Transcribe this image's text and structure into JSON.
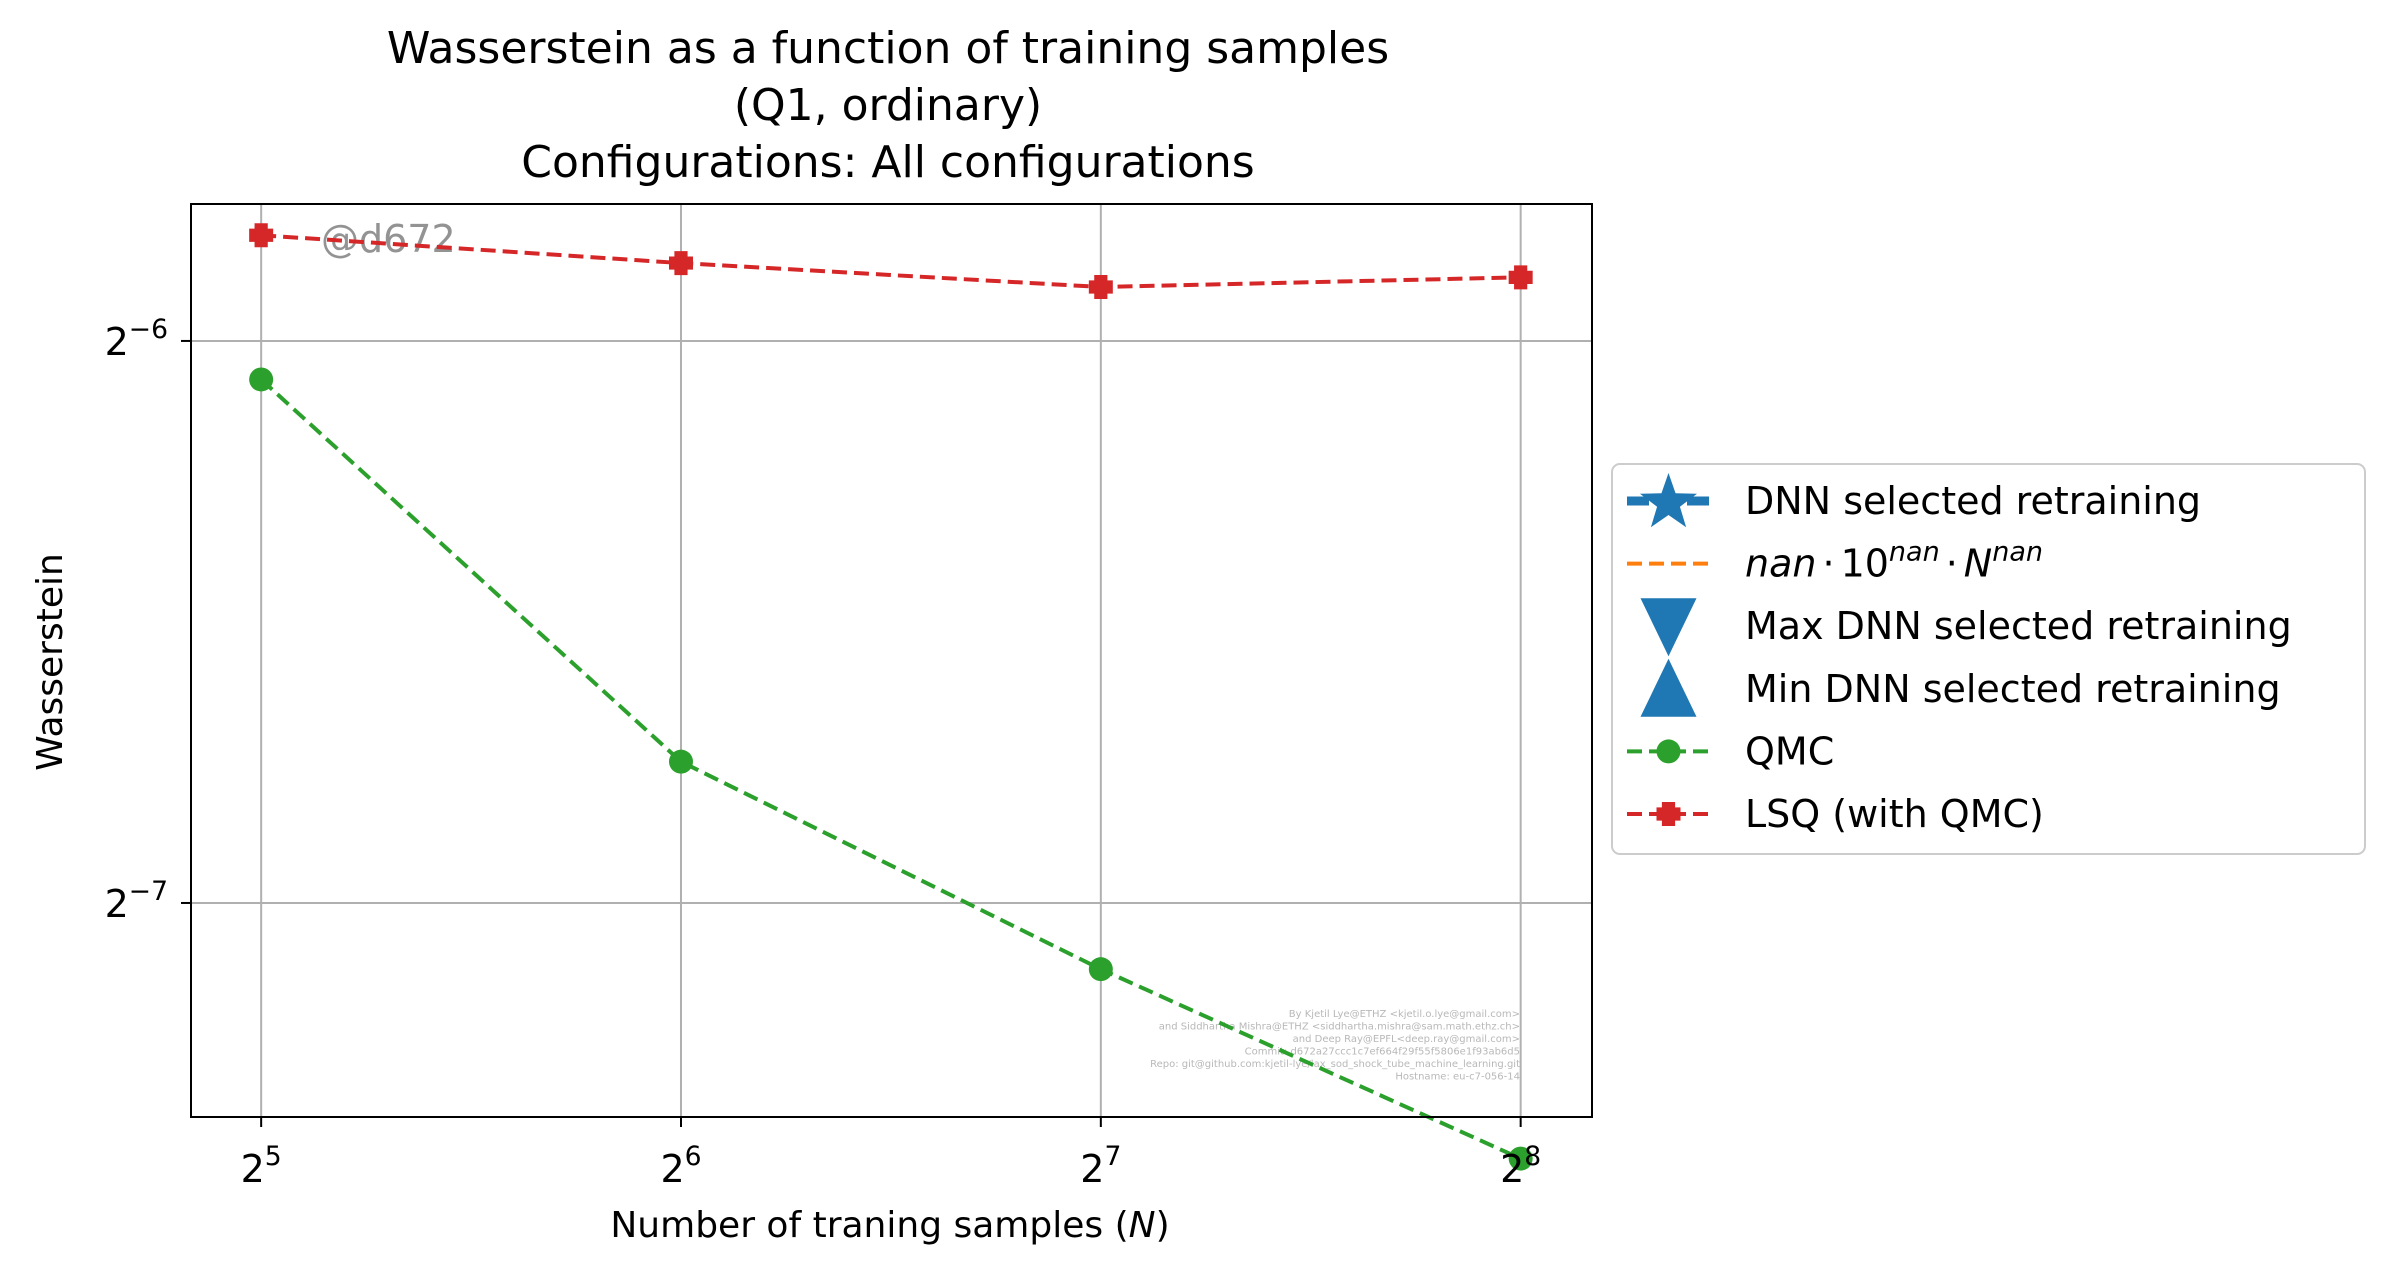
{
  "chart_data": {
    "type": "line",
    "title_lines": [
      "Wasserstein as a function of training samples",
      "(Q1, ordinary)",
      "Configurations: All configurations"
    ],
    "xlabel": {
      "prefix": "Number of traning samples (",
      "var": "N",
      "suffix": ")"
    },
    "ylabel": "Wasserstein",
    "x_scale": "log2",
    "y_scale": "log2",
    "xlim": [
      28.5,
      288
    ],
    "ylim": [
      0.006,
      0.0185
    ],
    "grid": true,
    "x_ticks": [
      {
        "value": 32,
        "base": "2",
        "exp": "5"
      },
      {
        "value": 64,
        "base": "2",
        "exp": "6"
      },
      {
        "value": 128,
        "base": "2",
        "exp": "7"
      },
      {
        "value": 256,
        "base": "2",
        "exp": "8"
      }
    ],
    "y_ticks": [
      {
        "value": 0.015625,
        "base": "2",
        "exp": "−6"
      },
      {
        "value": 0.0078125,
        "base": "2",
        "exp": "−7"
      }
    ],
    "x": [
      32,
      64,
      128,
      256
    ],
    "series": [
      {
        "name": "QMC",
        "color": "#2ca02c",
        "marker": "circle",
        "linestyle": "dashed",
        "values": [
          0.0149,
          0.0093,
          0.0072,
          0.0057
        ]
      },
      {
        "name": "LSQ (with QMC)",
        "color": "#d62728",
        "marker": "plus",
        "linestyle": "dashed",
        "values": [
          0.0178,
          0.0172,
          0.0167,
          0.0169
        ]
      }
    ],
    "legend": {
      "placement": "outside-right",
      "entries": [
        {
          "kind": "star-line",
          "color": "#1f77b4",
          "label": "DNN selected retraining"
        },
        {
          "kind": "formula",
          "color": "#ff7f0e",
          "label": "nan·10^nan·N^nan",
          "parts": {
            "a": "nan",
            "dot": "·",
            "ten": "10",
            "exp1": "nan",
            "n": "N",
            "exp2": "nan"
          }
        },
        {
          "kind": "triangle-down",
          "color": "#1f77b4",
          "label": "Max DNN selected retraining"
        },
        {
          "kind": "triangle-up",
          "color": "#1f77b4",
          "label": "Min DNN selected retraining"
        },
        {
          "kind": "circle-line",
          "color": "#2ca02c",
          "label": "QMC"
        },
        {
          "kind": "plus-line",
          "color": "#d62728",
          "label": "LSQ (with QMC)"
        }
      ]
    },
    "watermark": "@d672",
    "credits": [
      "By Kjetil Lye@ETHZ <kjetil.o.lye@gmail.com>",
      "and Siddhartha Mishra@ETHZ <siddhartha.mishra@sam.math.ethz.ch>",
      "and Deep Ray@EPFL<deep.ray@gmail.com>",
      "Commit: d672a27ccc1c7ef664f29f55f5806e1f93ab6d5",
      "Repo: git@github.com:kjetil-lye/lax_sod_shock_tube_machine_learning.git",
      "Hostname: eu-c7-056-14"
    ]
  }
}
